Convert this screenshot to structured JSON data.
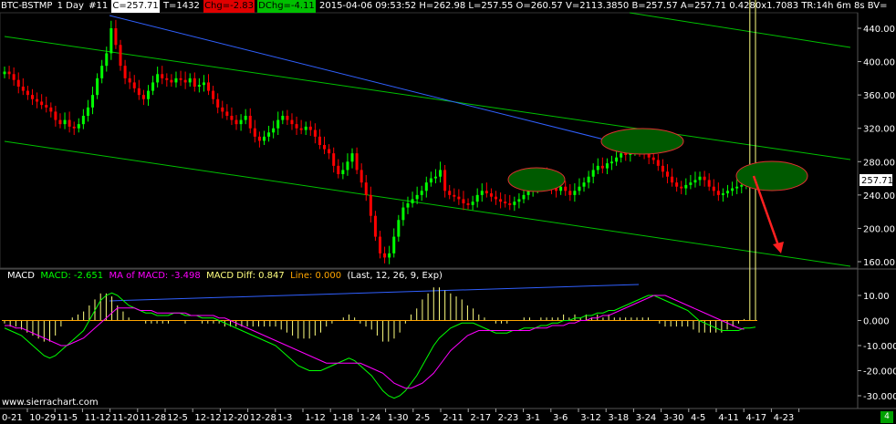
{
  "header": {
    "symbol": "BTC-BSTMP",
    "period": "1 Day",
    "bar_number": "#11",
    "last": "C=257.71",
    "ticks": "T=1432",
    "change": "Chg=-2.83",
    "day_change": "DChg=-4.11",
    "info": "2015-04-06 09:53:52 H=262.98 L=257.55 O=260.57 V=2113.3850 B=257.57 A=257.71 0.4280x1.7083 TR:14h 6m 8s BV="
  },
  "macd_legend": {
    "name": "MACD",
    "macd": "MACD: -2.651",
    "ma": "MA of MACD: -3.498",
    "diff": "MACD Diff: 0.847",
    "line": "Line: 0.000",
    "params": "(Last, 12, 26, 9, Exp)"
  },
  "watermark": "www.sierrachart.com",
  "corner_label": "4",
  "colors": {
    "up": "#00ff00",
    "down": "#ff0000",
    "macd": "#00ff00",
    "signal": "#ff00ff",
    "diff": "#ffff80",
    "zero": "#ffa500",
    "trend_blue": "#3060ff",
    "channel": "#00c000",
    "arrow": "#ff2020"
  },
  "chart_data": [
    {
      "type": "candlestick",
      "y_ticks": [
        "440.00",
        "400.00",
        "360.00",
        "320.00",
        "280.00",
        "240.00",
        "200.00",
        "160.00"
      ],
      "ylim": [
        145,
        455
      ],
      "last_price": "257.71",
      "x_ticks": [
        "0-21",
        "10-29",
        "11-5",
        "11-12",
        "11-20",
        "11-28",
        "12-5",
        "12-12",
        "12-20",
        "12-28",
        "1-3",
        "1-12",
        "1-18",
        "1-24",
        "1-30",
        "2-5",
        "2-11",
        "2-17",
        "2-23",
        "3-1",
        "3-6",
        "3-12",
        "3-18",
        "3-24",
        "3-30",
        "4-5",
        "4-11",
        "4-17",
        "4-23"
      ],
      "closes": [
        388,
        385,
        378,
        370,
        365,
        360,
        355,
        352,
        348,
        345,
        340,
        330,
        325,
        330,
        322,
        320,
        325,
        335,
        345,
        360,
        380,
        395,
        410,
        440,
        420,
        395,
        380,
        375,
        368,
        360,
        355,
        365,
        375,
        385,
        380,
        378,
        375,
        380,
        378,
        375,
        380,
        370,
        372,
        375,
        365,
        355,
        345,
        340,
        335,
        330,
        325,
        330,
        335,
        320,
        310,
        305,
        310,
        315,
        320,
        330,
        335,
        330,
        325,
        320,
        318,
        322,
        318,
        310,
        300,
        295,
        290,
        275,
        265,
        270,
        280,
        290,
        270,
        255,
        240,
        215,
        190,
        170,
        165,
        170,
        190,
        210,
        225,
        230,
        235,
        240,
        245,
        255,
        260,
        262,
        270,
        245,
        240,
        238,
        235,
        230,
        228,
        232,
        240,
        245,
        242,
        238,
        235,
        232,
        230,
        228,
        232,
        235,
        240,
        245,
        250,
        262,
        265,
        255,
        248,
        245,
        250,
        245,
        240,
        245,
        250,
        255,
        262,
        270,
        275,
        272,
        278,
        280,
        285,
        290,
        288,
        292,
        295,
        292,
        290,
        285,
        282,
        275,
        268,
        262,
        255,
        250,
        248,
        252,
        255,
        258,
        262,
        258,
        250,
        245,
        240,
        242,
        245,
        248,
        250,
        252,
        255,
        258,
        257.71
      ],
      "candle_colors_note": "green up / red down"
    },
    {
      "type": "line",
      "title": "MACD",
      "y_ticks": [
        "10.00",
        "0.000",
        "-10.000",
        "-20.000",
        "-30.000"
      ],
      "ylim": [
        -33,
        13
      ],
      "series": [
        {
          "name": "MACD",
          "values": [
            -3,
            -4,
            -5,
            -6,
            -8,
            -10,
            -12,
            -14,
            -15,
            -14,
            -12,
            -10,
            -8,
            -6,
            -4,
            0,
            4,
            8,
            10,
            11,
            10,
            8,
            6,
            5,
            4,
            3,
            3,
            2,
            2,
            2,
            3,
            3,
            2,
            2,
            2,
            1,
            1,
            1,
            0,
            -1,
            -2,
            -3,
            -4,
            -5,
            -6,
            -7,
            -8,
            -9,
            -10,
            -12,
            -14,
            -16,
            -18,
            -19,
            -20,
            -20,
            -20,
            -19,
            -18,
            -17,
            -16,
            -15,
            -16,
            -18,
            -20,
            -22,
            -25,
            -28,
            -30,
            -31,
            -30,
            -28,
            -25,
            -22,
            -18,
            -14,
            -10,
            -7,
            -5,
            -3,
            -2,
            -1,
            -1,
            -1,
            -2,
            -3,
            -4,
            -5,
            -5,
            -5,
            -4,
            -4,
            -3,
            -3,
            -3,
            -2,
            -2,
            -1,
            -1,
            0,
            0,
            1,
            1,
            2,
            2,
            3,
            3,
            4,
            4,
            5,
            6,
            7,
            8,
            9,
            10,
            10,
            9,
            8,
            7,
            6,
            5,
            4,
            2,
            0,
            -1,
            -2,
            -3,
            -4,
            -4,
            -4,
            -4,
            -3,
            -3,
            -2.651
          ]
        },
        {
          "name": "MA of MACD",
          "values": [
            -2,
            -2,
            -3,
            -3,
            -4,
            -5,
            -6,
            -7,
            -8,
            -9,
            -10,
            -10,
            -9,
            -8,
            -7,
            -5,
            -3,
            -1,
            1,
            3,
            5,
            5,
            5,
            5,
            4,
            4,
            4,
            3,
            3,
            3,
            3,
            3,
            3,
            2,
            2,
            2,
            2,
            2,
            1,
            1,
            0,
            -1,
            -2,
            -3,
            -4,
            -5,
            -6,
            -7,
            -8,
            -9,
            -10,
            -11,
            -12,
            -13,
            -14,
            -15,
            -16,
            -17,
            -17,
            -17,
            -17,
            -17,
            -17,
            -17,
            -18,
            -19,
            -20,
            -21,
            -23,
            -25,
            -26,
            -27,
            -27,
            -26,
            -25,
            -23,
            -21,
            -18,
            -15,
            -12,
            -10,
            -8,
            -6,
            -5,
            -4,
            -4,
            -4,
            -4,
            -4,
            -4,
            -4,
            -4,
            -4,
            -4,
            -3,
            -3,
            -3,
            -2,
            -2,
            -2,
            -1,
            -1,
            0,
            0,
            1,
            1,
            2,
            2,
            3,
            4,
            5,
            6,
            7,
            8,
            9,
            10,
            10,
            10,
            9,
            8,
            7,
            6,
            5,
            4,
            3,
            2,
            1,
            0,
            -1,
            -2,
            -3,
            -3.498
          ]
        }
      ]
    }
  ]
}
